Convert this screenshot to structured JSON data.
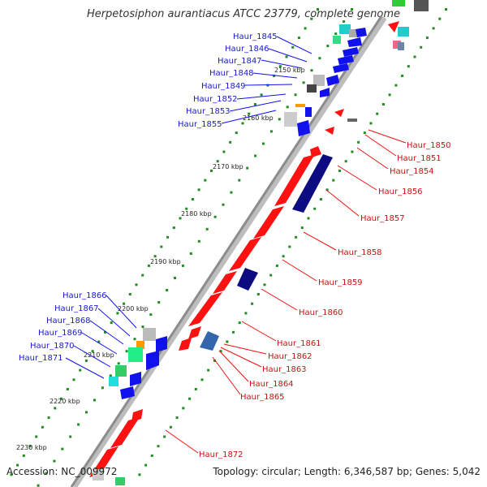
{
  "title": "Herpetosiphon aurantiacus ATCC 23779, complete genome",
  "footer": {
    "accession": "Accession: NC_009972",
    "summary": "Topology: circular; Length: 6,346,587 bp; Genes: 5,042"
  },
  "colors": {
    "backbone": "#8c8c8c",
    "forward_cds": "#ff1111",
    "reverse_cds": "#1111ee",
    "dark_cds": "#0c0c80",
    "gc_dots": "#228b22",
    "blue_label": "#1a1acc",
    "red_label": "#cc1111"
  },
  "ticks": [
    "2150 kbp",
    "2160 kbp",
    "2170 kbp",
    "2180 kbp",
    "2190 kbp",
    "2200 kbp",
    "2210 kbp",
    "2220 kbp",
    "2230 kbp"
  ],
  "labels_left": [
    "Haur_1845",
    "Haur_1846",
    "Haur_1847",
    "Haur_1848",
    "Haur_1849",
    "Haur_1852",
    "Haur_1853",
    "Haur_1855",
    "Haur_1866",
    "Haur_1867",
    "Haur_1868",
    "Haur_1869",
    "Haur_1870",
    "Haur_1871"
  ],
  "labels_right": [
    "Haur_1850",
    "Haur_1851",
    "Haur_1854",
    "Haur_1856",
    "Haur_1857",
    "Haur_1858",
    "Haur_1859",
    "Haur_1860",
    "Haur_1861",
    "Haur_1862",
    "Haur_1863",
    "Haur_1864",
    "Haur_1865",
    "Haur_1872"
  ]
}
